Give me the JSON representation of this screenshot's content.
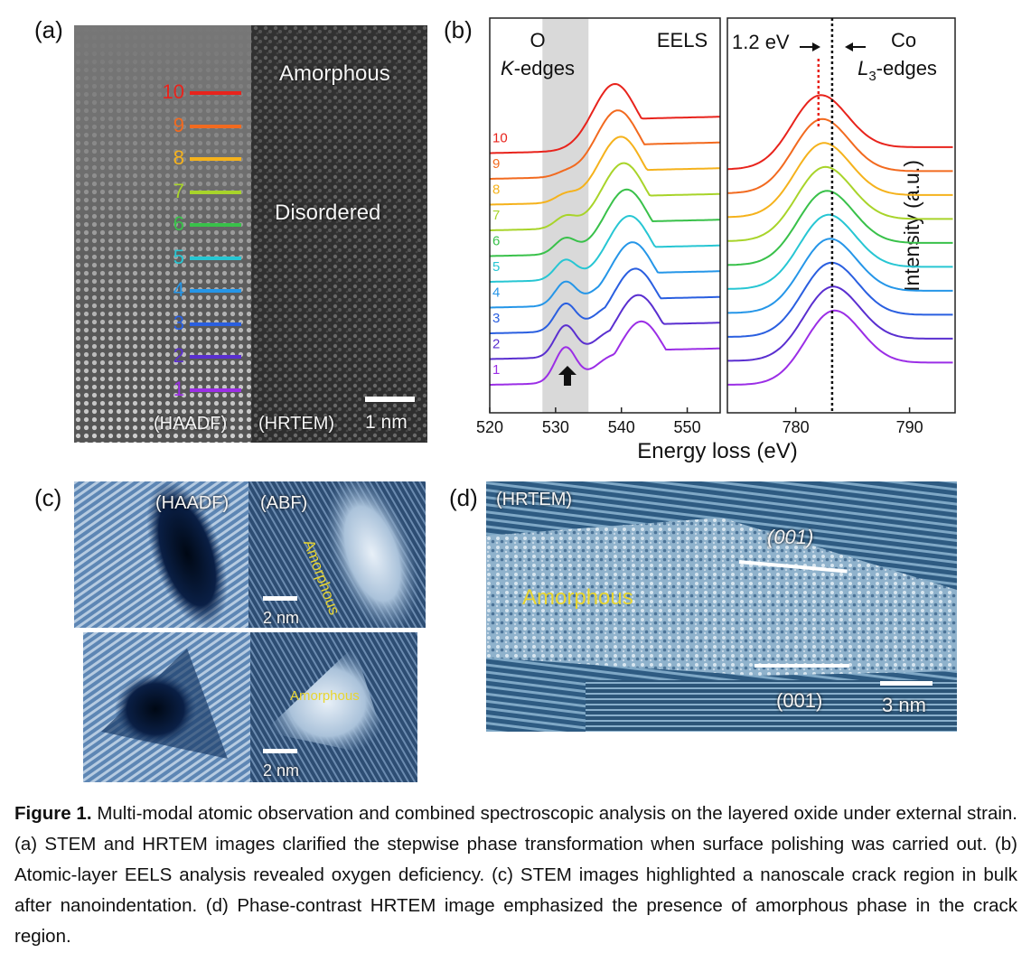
{
  "panel_a": {
    "label": "(a)",
    "text_amorphous": "Amorphous",
    "text_disordered": "Disordered",
    "tag_left": "(HAADF)",
    "tag_right": "(HRTEM)",
    "scale": "1 nm",
    "layers": [
      {
        "n": "10",
        "color": "#e8231c"
      },
      {
        "n": "9",
        "color": "#f26a1f"
      },
      {
        "n": "8",
        "color": "#f5b21c"
      },
      {
        "n": "7",
        "color": "#a8d42a"
      },
      {
        "n": "6",
        "color": "#39c14a"
      },
      {
        "n": "5",
        "color": "#27c6d3"
      },
      {
        "n": "4",
        "color": "#2596e8"
      },
      {
        "n": "3",
        "color": "#2a5fe0"
      },
      {
        "n": "2",
        "color": "#5a2fd0"
      },
      {
        "n": "1",
        "color": "#9b2ee6"
      }
    ]
  },
  "panel_b": {
    "label": "(b)",
    "ylabel": "Intensity (a.u.)",
    "xlabel": "Energy loss (eV)",
    "o_title_1": "O",
    "o_title_2": "K-edges",
    "eels": "EELS",
    "co_title_1": "Co",
    "co_title_2": "L3-edges",
    "shift": "1.2 eV",
    "ticks_left": [
      "520",
      "530",
      "540",
      "550"
    ],
    "ticks_right": [
      "780",
      "790"
    ],
    "curve_labels": [
      "10",
      "9",
      "8",
      "7",
      "6",
      "5",
      "4",
      "3",
      "2",
      "1"
    ]
  },
  "panel_c": {
    "label": "(c)",
    "tag_haadf": "(HAADF)",
    "tag_abf": "(ABF)",
    "amorphous_1": "Amorphous",
    "amorphous_2": "Amorphous",
    "scale_1": "2 nm",
    "scale_2": "2 nm"
  },
  "panel_d": {
    "label": "(d)",
    "tag": "(HRTEM)",
    "amorphous": "Amorphous",
    "plane_top": "(001)",
    "plane_bottom": "(001)",
    "scale": "3 nm"
  },
  "chart_data": {
    "type": "line",
    "title": "",
    "xlabel": "Energy loss (eV)",
    "ylabel": "Intensity (a.u.)",
    "panels": [
      {
        "name": "O K-edges",
        "xlim": [
          520,
          555
        ],
        "shaded_range": [
          528,
          535
        ],
        "peaks_eV": [
          531,
          539,
          543
        ]
      },
      {
        "name": "Co L3-edges",
        "xlim": [
          774,
          794
        ],
        "reference_line_eV": 783.2,
        "shifted_peak_eV": 782,
        "shift_eV": 1.2
      }
    ],
    "series": [
      {
        "name": "10",
        "color": "#e8231c"
      },
      {
        "name": "9",
        "color": "#f26a1f"
      },
      {
        "name": "8",
        "color": "#f5b21c"
      },
      {
        "name": "7",
        "color": "#a8d42a"
      },
      {
        "name": "6",
        "color": "#39c14a"
      },
      {
        "name": "5",
        "color": "#27c6d3"
      },
      {
        "name": "4",
        "color": "#2596e8"
      },
      {
        "name": "3",
        "color": "#2a5fe0"
      },
      {
        "name": "2",
        "color": "#5a2fd0"
      },
      {
        "name": "1",
        "color": "#9b2ee6"
      }
    ]
  },
  "caption": {
    "bold": "Figure 1.",
    "text": " Multi-modal atomic observation and combined spectroscopic analysis on the layered oxide under external strain. (a) STEM and HRTEM images clarified the stepwise phase transformation when surface polishing was carried out. (b) Atomic-layer EELS analysis revealed oxygen deficiency. (c) STEM images highlighted a nanoscale crack region in bulk after nanoindentation. (d) Phase-contrast HRTEM image emphasized the presence of amorphous phase in the crack region."
  }
}
